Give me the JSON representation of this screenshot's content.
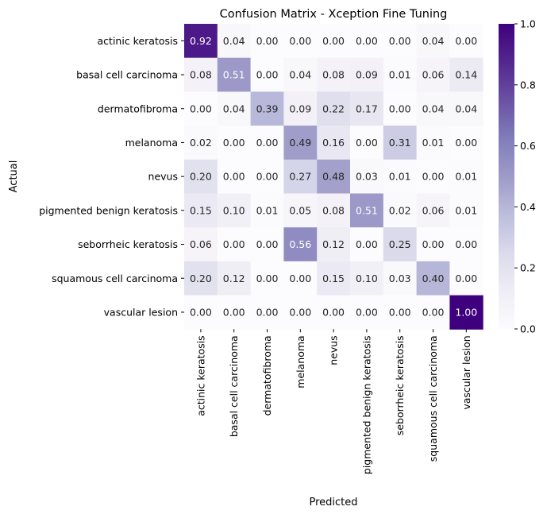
{
  "chart_data": {
    "type": "heatmap",
    "title": "Confusion Matrix - Xception Fine Tuning",
    "xlabel": "Predicted",
    "ylabel": "Actual",
    "x_categories": [
      "actinic keratosis",
      "basal cell carcinoma",
      "dermatofibroma",
      "melanoma",
      "nevus",
      "pigmented benign keratosis",
      "seborrheic keratosis",
      "squamous cell carcinoma",
      "vascular lesion"
    ],
    "y_categories": [
      "actinic keratosis",
      "basal cell carcinoma",
      "dermatofibroma",
      "melanoma",
      "nevus",
      "pigmented benign keratosis",
      "seborrheic keratosis",
      "squamous cell carcinoma",
      "vascular lesion"
    ],
    "values": [
      [
        0.92,
        0.04,
        0.0,
        0.0,
        0.0,
        0.0,
        0.0,
        0.04,
        0.0
      ],
      [
        0.08,
        0.51,
        0.0,
        0.04,
        0.08,
        0.09,
        0.01,
        0.06,
        0.14
      ],
      [
        0.0,
        0.04,
        0.39,
        0.09,
        0.22,
        0.17,
        0.0,
        0.04,
        0.04
      ],
      [
        0.02,
        0.0,
        0.0,
        0.49,
        0.16,
        0.0,
        0.31,
        0.01,
        0.0
      ],
      [
        0.2,
        0.0,
        0.0,
        0.27,
        0.48,
        0.03,
        0.01,
        0.0,
        0.01
      ],
      [
        0.15,
        0.1,
        0.01,
        0.05,
        0.08,
        0.51,
        0.02,
        0.06,
        0.01
      ],
      [
        0.06,
        0.0,
        0.0,
        0.56,
        0.12,
        0.0,
        0.25,
        0.0,
        0.0
      ],
      [
        0.2,
        0.12,
        0.0,
        0.0,
        0.15,
        0.1,
        0.03,
        0.4,
        0.0
      ],
      [
        0.0,
        0.0,
        0.0,
        0.0,
        0.0,
        0.0,
        0.0,
        0.0,
        1.0
      ]
    ],
    "annotation_format": "2 decimals",
    "colormap": "Purples",
    "color_range": [
      0.0,
      1.0
    ],
    "colorbar_ticks": [
      "0.0",
      "0.2",
      "0.4",
      "0.6",
      "0.8",
      "1.0"
    ],
    "colors": {
      "low": "#fcfbfd",
      "high": "#3f007d",
      "text_dark": "#262626",
      "text_light": "#ffffff"
    }
  }
}
